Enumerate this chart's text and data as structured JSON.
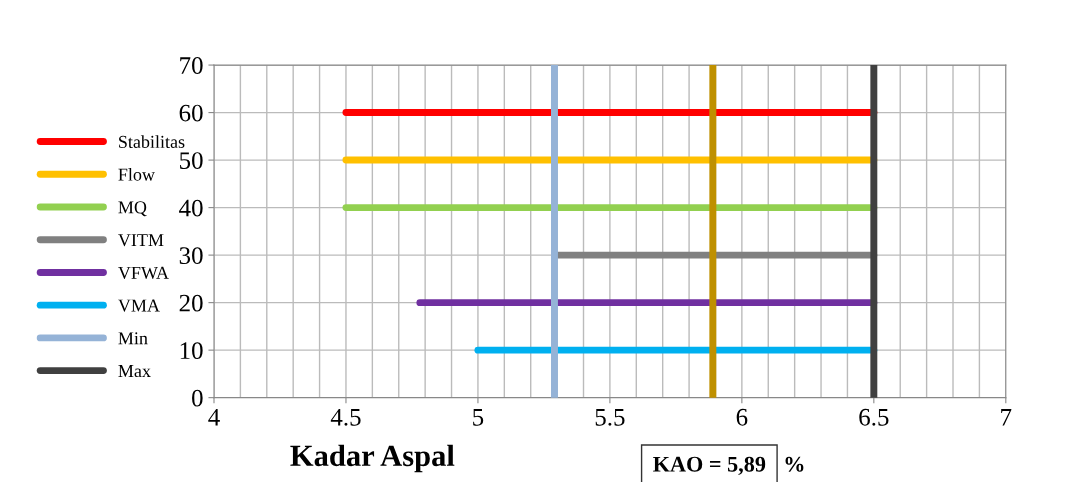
{
  "chart_data": {
    "type": "line",
    "xlabel": "Kadar Aspal",
    "xlim": [
      4,
      7
    ],
    "xticks": [
      4,
      4.5,
      5,
      5.5,
      6,
      6.5,
      7
    ],
    "ylim": [
      0,
      70
    ],
    "yticks": [
      0,
      10,
      20,
      30,
      40,
      50,
      60,
      70
    ],
    "grid": true,
    "legend": "left",
    "marker": "none",
    "line_style": "solid",
    "series": [
      {
        "name": "Stabilitas",
        "color": "#ff0000",
        "x": [
          4.5,
          6.5
        ],
        "values": [
          60,
          60
        ]
      },
      {
        "name": "Flow",
        "color": "#ffc000",
        "x": [
          4.5,
          6.5
        ],
        "values": [
          50,
          50
        ]
      },
      {
        "name": "MQ",
        "color": "#92d050",
        "x": [
          4.5,
          6.5
        ],
        "values": [
          40,
          40
        ]
      },
      {
        "name": "VITM",
        "color": "#808080",
        "x": [
          5.3,
          6.5
        ],
        "values": [
          30,
          30
        ]
      },
      {
        "name": "VFWA",
        "color": "#7030a0",
        "x": [
          4.78,
          6.5
        ],
        "values": [
          20,
          20
        ]
      },
      {
        "name": "VMA",
        "color": "#00b0f0",
        "x": [
          5.0,
          6.5
        ],
        "values": [
          10,
          10
        ]
      },
      {
        "name": "Min",
        "color": "#95b3d7",
        "x": [
          5.29,
          5.29
        ],
        "values": [
          0,
          70
        ]
      },
      {
        "name": "Max",
        "color": "#404040",
        "x": [
          6.5,
          6.5
        ],
        "values": [
          0,
          70
        ]
      }
    ],
    "ref_lines": [
      {
        "axis": "x",
        "value": 5.89,
        "color": "#bf9000"
      }
    ],
    "annotations": [
      "KAO = 5,89",
      "%"
    ]
  }
}
